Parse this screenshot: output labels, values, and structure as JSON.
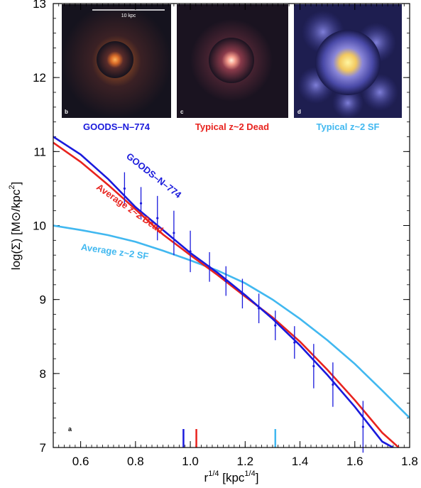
{
  "chart_data": {
    "type": "line",
    "xlabel_main": "r",
    "xlabel_sup": "1/4",
    "xlabel_unit": " [kpc",
    "xlabel_unit_sup": "1/4",
    "xlabel_close": "]",
    "ylabel_main": "log(Σ) [M⊙/kpc",
    "ylabel_sup": "2",
    "ylabel_close": "]",
    "xlim": [
      0.5,
      1.8
    ],
    "ylim": [
      7,
      13
    ],
    "x_ticks": [
      "0.6",
      "0.8",
      "1.0",
      "1.2",
      "1.4",
      "1.6",
      "1.8"
    ],
    "y_ticks": [
      "7",
      "8",
      "9",
      "10",
      "11",
      "12",
      "13"
    ],
    "panel_letter": "a",
    "series": [
      {
        "name": "GOODS–N–774",
        "color": "#1a1adc",
        "x": [
          0.5,
          0.6,
          0.7,
          0.8,
          0.9,
          1.0,
          1.1,
          1.2,
          1.3,
          1.4,
          1.5,
          1.6,
          1.7,
          1.74
        ],
        "y": [
          11.2,
          10.96,
          10.63,
          10.25,
          9.94,
          9.63,
          9.36,
          9.06,
          8.74,
          8.38,
          7.98,
          7.55,
          7.08,
          7.0
        ]
      },
      {
        "name": "Average z~2 Dead",
        "color": "#e8231e",
        "x": [
          0.5,
          0.6,
          0.7,
          0.8,
          0.9,
          1.0,
          1.1,
          1.2,
          1.3,
          1.4,
          1.5,
          1.6,
          1.7,
          1.76
        ],
        "y": [
          11.12,
          10.86,
          10.55,
          10.22,
          9.88,
          9.6,
          9.33,
          9.04,
          8.76,
          8.43,
          8.05,
          7.64,
          7.2,
          7.0
        ]
      },
      {
        "name": "Average z~2 SF",
        "color": "#41b8f0",
        "x": [
          0.5,
          0.6,
          0.7,
          0.8,
          0.9,
          1.0,
          1.1,
          1.2,
          1.3,
          1.4,
          1.5,
          1.6,
          1.7,
          1.8
        ],
        "y": [
          10.0,
          9.94,
          9.87,
          9.78,
          9.66,
          9.53,
          9.39,
          9.22,
          9.0,
          8.74,
          8.45,
          8.13,
          7.77,
          7.4
        ]
      }
    ],
    "data_points": {
      "color": "#1a1adc",
      "x": [
        0.76,
        0.82,
        0.88,
        0.94,
        1.0,
        1.07,
        1.13,
        1.19,
        1.25,
        1.31,
        1.38,
        1.45,
        1.52,
        1.63
      ],
      "y": [
        10.5,
        10.3,
        10.1,
        9.9,
        9.65,
        9.44,
        9.25,
        9.08,
        8.88,
        8.65,
        8.42,
        8.1,
        7.85,
        7.28
      ],
      "yerr": [
        0.22,
        0.22,
        0.3,
        0.3,
        0.28,
        0.2,
        0.2,
        0.2,
        0.2,
        0.2,
        0.22,
        0.3,
        0.3,
        0.35
      ]
    },
    "radius_markers": [
      {
        "x": 0.975,
        "color": "#1a1adc"
      },
      {
        "x": 1.022,
        "color": "#e8231e"
      },
      {
        "x": 1.31,
        "color": "#41b8f0"
      }
    ],
    "insets": [
      {
        "letter": "b",
        "caption": "GOODS–N–774",
        "caption_color": "#1a1adc",
        "scale_label": "10 kpc",
        "style": "small-orange"
      },
      {
        "letter": "c",
        "caption": "Typical z~2 Dead",
        "caption_color": "#e8231e",
        "style": "pink-core"
      },
      {
        "letter": "d",
        "caption": "Typical z~2 SF",
        "caption_color": "#41b8f0",
        "style": "blue-disk"
      }
    ]
  }
}
